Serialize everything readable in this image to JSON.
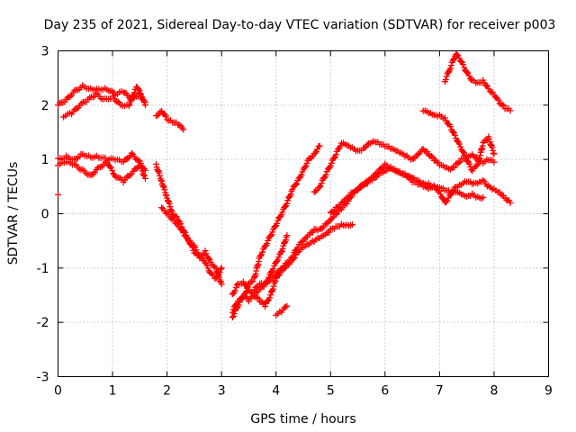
{
  "chart_data": {
    "type": "scatter",
    "title": "Day 235 of 2021, Sidereal Day-to-day VTEC variation (SDTVAR) for receiver p003",
    "xlabel": "GPS time / hours",
    "ylabel": "SDTVAR / TECUs",
    "xlim": [
      0,
      9
    ],
    "ylim": [
      -3,
      3
    ],
    "xticks": [
      "0",
      "1",
      "2",
      "3",
      "4",
      "5",
      "6",
      "7",
      "8",
      "9"
    ],
    "yticks": [
      "-3",
      "-2",
      "-1",
      "0",
      "1",
      "2",
      "3"
    ],
    "grid": true,
    "legend": "none",
    "marker": "plus",
    "color": "#ff0000",
    "series": [
      {
        "x": [
          0.0,
          0.15,
          0.3,
          0.45,
          0.6,
          0.75,
          0.9,
          1.05,
          1.2,
          1.35,
          1.5,
          1.6
        ],
        "y": [
          2.0,
          2.1,
          2.25,
          2.35,
          2.3,
          2.3,
          2.3,
          2.2,
          2.25,
          2.1,
          2.2,
          2.05
        ]
      },
      {
        "x": [
          0.1,
          0.25,
          0.4,
          0.55,
          0.7,
          0.85,
          1.0,
          1.15,
          1.3,
          1.45,
          1.6
        ],
        "y": [
          1.8,
          1.85,
          2.0,
          2.1,
          2.2,
          2.1,
          2.15,
          2.0,
          2.0,
          2.35,
          2.0
        ]
      },
      {
        "x": [
          1.8,
          1.9,
          2.0,
          2.1,
          2.2,
          2.3
        ],
        "y": [
          1.8,
          1.9,
          1.75,
          1.7,
          1.65,
          1.55
        ]
      },
      {
        "x": [
          0.0,
          0.15,
          0.3,
          0.45,
          0.6,
          0.75,
          0.9,
          1.05,
          1.2,
          1.35,
          1.5,
          1.6
        ],
        "y": [
          1.0,
          1.05,
          1.0,
          1.1,
          1.05,
          1.05,
          1.0,
          1.0,
          0.95,
          1.1,
          0.95,
          0.8
        ]
      },
      {
        "x": [
          0.0,
          0.15,
          0.3,
          0.45,
          0.6,
          0.75,
          0.9,
          1.05,
          1.2,
          1.35,
          1.5,
          1.6
        ],
        "y": [
          0.9,
          0.95,
          0.9,
          0.8,
          0.7,
          0.85,
          0.95,
          0.7,
          0.6,
          0.75,
          0.9,
          0.65
        ]
      },
      {
        "x": [
          0.0
        ],
        "y": [
          0.35
        ]
      },
      {
        "x": [
          1.8,
          1.9,
          2.0,
          2.1,
          2.2,
          2.3,
          2.4,
          2.5,
          2.6,
          2.7,
          2.8,
          2.9,
          3.0
        ],
        "y": [
          0.9,
          0.6,
          0.3,
          0.0,
          -0.1,
          -0.3,
          -0.5,
          -0.6,
          -0.8,
          -0.7,
          -0.9,
          -1.0,
          -1.3
        ]
      },
      {
        "x": [
          1.9,
          2.0,
          2.1,
          2.2,
          2.3,
          2.4,
          2.5,
          2.6,
          2.7,
          2.8,
          2.9,
          3.0
        ],
        "y": [
          0.1,
          0.0,
          -0.1,
          -0.2,
          -0.35,
          -0.5,
          -0.7,
          -0.8,
          -0.9,
          -1.1,
          -1.2,
          -1.0
        ]
      },
      {
        "x": [
          3.2,
          3.3,
          3.4,
          3.5,
          3.6,
          3.7,
          3.8,
          3.9,
          4.0,
          4.1,
          4.2,
          4.3,
          4.4,
          4.5,
          4.6,
          4.7,
          4.8
        ],
        "y": [
          -1.8,
          -1.6,
          -1.55,
          -1.3,
          -1.2,
          -0.8,
          -0.6,
          -0.4,
          -0.2,
          0.0,
          0.2,
          0.45,
          0.6,
          0.8,
          1.0,
          1.1,
          1.25
        ]
      },
      {
        "x": [
          3.2,
          3.3,
          3.4,
          3.5,
          3.6,
          3.7,
          3.8,
          3.9,
          4.0,
          4.1,
          4.2
        ],
        "y": [
          -1.9,
          -1.7,
          -1.5,
          -1.6,
          -1.5,
          -1.4,
          -1.3,
          -1.1,
          -0.9,
          -0.7,
          -0.4
        ]
      },
      {
        "x": [
          3.2,
          3.3,
          3.4,
          3.5,
          3.6,
          3.7,
          3.8,
          3.9,
          4.0,
          4.1,
          4.2,
          4.3,
          4.4,
          4.5,
          4.6,
          4.7,
          4.8,
          4.9,
          5.0,
          5.1,
          5.2,
          5.3,
          5.4
        ],
        "y": [
          -1.5,
          -1.3,
          -1.25,
          -1.4,
          -1.5,
          -1.6,
          -1.7,
          -1.5,
          -1.2,
          -1.05,
          -0.95,
          -0.85,
          -0.7,
          -0.6,
          -0.55,
          -0.5,
          -0.45,
          -0.4,
          -0.3,
          -0.25,
          -0.2,
          -0.2,
          -0.2
        ]
      },
      {
        "x": [
          3.6,
          3.7,
          3.8,
          3.9,
          4.0,
          4.1,
          4.2,
          4.3,
          4.4,
          4.5,
          4.6,
          4.7,
          4.8,
          4.9,
          5.0,
          5.1,
          5.2,
          5.3,
          5.4,
          5.5,
          5.6,
          5.7,
          5.8,
          5.9,
          6.0,
          6.1,
          6.2,
          6.3,
          6.4,
          6.5,
          6.6,
          6.7,
          6.8,
          6.9,
          7.0,
          7.1,
          7.2,
          7.3,
          7.4,
          7.5,
          7.6,
          7.7,
          7.8
        ],
        "y": [
          -1.4,
          -1.3,
          -1.3,
          -1.2,
          -1.1,
          -1.0,
          -0.9,
          -0.8,
          -0.6,
          -0.5,
          -0.4,
          -0.3,
          -0.3,
          -0.2,
          -0.1,
          0.0,
          0.1,
          0.2,
          0.35,
          0.45,
          0.5,
          0.6,
          0.65,
          0.75,
          0.8,
          0.85,
          0.8,
          0.75,
          0.7,
          0.65,
          0.6,
          0.55,
          0.55,
          0.5,
          0.5,
          0.45,
          0.4,
          0.4,
          0.35,
          0.3,
          0.35,
          0.3,
          0.3
        ]
      },
      {
        "x": [
          4.0,
          4.1,
          4.2
        ],
        "y": [
          -1.85,
          -1.8,
          -1.7
        ]
      },
      {
        "x": [
          4.7,
          4.8,
          4.9,
          5.0,
          5.1,
          5.2,
          5.3,
          5.4,
          5.5,
          5.6,
          5.7,
          5.8,
          5.9,
          6.0,
          6.1,
          6.2,
          6.3,
          6.4,
          6.5,
          6.6,
          6.7,
          6.8,
          6.9,
          7.0,
          7.1,
          7.2,
          7.3,
          7.4,
          7.5,
          7.6,
          7.7,
          7.8,
          7.9,
          8.0
        ],
        "y": [
          0.4,
          0.5,
          0.7,
          0.9,
          1.1,
          1.3,
          1.25,
          1.2,
          1.15,
          1.2,
          1.3,
          1.35,
          1.3,
          1.25,
          1.2,
          1.15,
          1.1,
          1.05,
          1.0,
          1.1,
          1.2,
          1.1,
          1.0,
          0.9,
          0.85,
          0.8,
          0.9,
          1.0,
          1.05,
          1.1,
          1.0,
          0.95,
          1.0,
          0.95
        ]
      },
      {
        "x": [
          5.0,
          5.1,
          5.2,
          5.3,
          5.4,
          5.5,
          5.6,
          5.7,
          5.8,
          5.9,
          6.0,
          6.1,
          6.2,
          6.3,
          6.4,
          6.5,
          6.6,
          6.7,
          6.8,
          6.9,
          7.0,
          7.1,
          7.2,
          7.3,
          7.4,
          7.5,
          7.6,
          7.7,
          7.8,
          7.9,
          8.0,
          8.1,
          8.2,
          8.3
        ],
        "y": [
          0.0,
          0.1,
          0.2,
          0.3,
          0.4,
          0.45,
          0.55,
          0.6,
          0.7,
          0.8,
          0.9,
          0.85,
          0.8,
          0.75,
          0.7,
          0.6,
          0.55,
          0.5,
          0.45,
          0.5,
          0.4,
          0.2,
          0.35,
          0.5,
          0.55,
          0.6,
          0.55,
          0.55,
          0.6,
          0.5,
          0.45,
          0.4,
          0.3,
          0.2
        ]
      },
      {
        "x": [
          6.7,
          6.8,
          6.9,
          7.0,
          7.1,
          7.2,
          7.3,
          7.4,
          7.5,
          7.6,
          7.7,
          7.8,
          7.9,
          8.0
        ],
        "y": [
          1.9,
          1.85,
          1.8,
          1.8,
          1.75,
          1.6,
          1.4,
          1.2,
          1.0,
          0.8,
          0.9,
          1.3,
          1.4,
          1.1
        ]
      },
      {
        "x": [
          7.1,
          7.2,
          7.3,
          7.4,
          7.5,
          7.6,
          7.7,
          7.8,
          7.9,
          8.0,
          8.1,
          8.2,
          8.3
        ],
        "y": [
          2.45,
          2.7,
          2.95,
          2.8,
          2.6,
          2.45,
          2.4,
          2.45,
          2.3,
          2.2,
          2.05,
          1.95,
          1.9
        ]
      }
    ]
  }
}
